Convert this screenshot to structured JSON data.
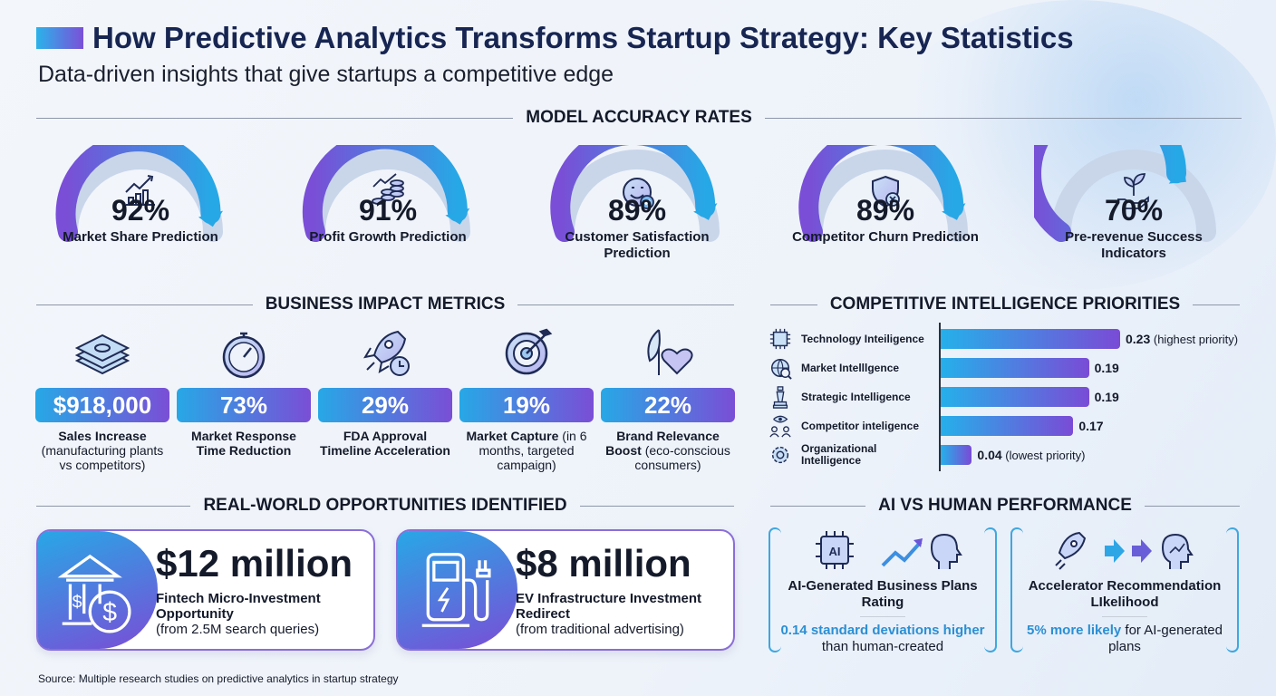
{
  "header": {
    "title": "How Predictive Analytics Transforms Startup Strategy: Key Statistics",
    "subtitle": "Data-driven insights that give startups a competitive edge"
  },
  "colors": {
    "gradient_start": "#27a8e6",
    "gradient_end": "#7a4ed6",
    "title": "#172552",
    "highlight": "#2a8fd4"
  },
  "accuracy": {
    "heading": "MODEL ACCURACY RATES",
    "items": [
      {
        "value": "92%",
        "pct": 92,
        "label": "Market Share Prediction",
        "icon": "chart-up-icon"
      },
      {
        "value": "91%",
        "pct": 91,
        "label": "Profit Growth Prediction",
        "icon": "coins-growth-icon"
      },
      {
        "value": "89%",
        "pct": 89,
        "label": "Customer Satisfaction Prediction",
        "icon": "smile-check-icon"
      },
      {
        "value": "89%",
        "pct": 89,
        "label": "Competitor Churn Prediction",
        "icon": "shield-x-icon"
      },
      {
        "value": "70%",
        "pct": 70,
        "label": "Pre-revenue Success Indicators",
        "icon": "plant-hand-icon"
      }
    ]
  },
  "impact": {
    "heading": "BUSINESS IMPACT METRICS",
    "items": [
      {
        "value": "$918,000",
        "bold": "Sales Increase",
        "note": "(manufacturing plants vs competitors)",
        "icon": "money-stack-icon"
      },
      {
        "value": "73%",
        "bold": "Market Response Time Reduction",
        "note": "",
        "icon": "stopwatch-icon"
      },
      {
        "value": "29%",
        "bold": "FDA Approval Timeline Acceleration",
        "note": "",
        "icon": "rocket-clock-icon"
      },
      {
        "value": "19%",
        "bold": "Market Capture",
        "note": "(in 6 months, targeted campaign)",
        "icon": "target-icon"
      },
      {
        "value": "22%",
        "bold": "Brand Relevance Boost",
        "note": "(eco-conscious consumers)",
        "icon": "leaf-heart-icon"
      }
    ]
  },
  "chart_data": {
    "type": "bar",
    "orientation": "horizontal",
    "title": "COMPETITIVE INTELLIGENCE PRIORITIES",
    "categories": [
      "Technology Inteiligence",
      "Market Intelllgence",
      "Strategic Intelligence",
      "Competitor inteligence",
      "Organizational Intelligence"
    ],
    "values": [
      0.23,
      0.19,
      0.19,
      0.17,
      0.04
    ],
    "value_labels": [
      "0.23",
      "0.19",
      "0.19",
      "0.17",
      "0.04"
    ],
    "annotations": [
      "(highest priority)",
      "",
      "",
      "",
      "(lowest priority)"
    ],
    "icons": [
      "chip-icon",
      "globe-search-icon",
      "chess-icon",
      "people-eye-icon",
      "gear-icon"
    ],
    "xlim": [
      0,
      0.25
    ],
    "grid": false
  },
  "opportunities": {
    "heading": "REAL-WORLD OPPORTUNITIES IDENTIFIED",
    "items": [
      {
        "amount": "$12 million",
        "title": "Fintech Micro-Investment Opportunity",
        "note": "(from 2.5M search queries)",
        "icon": "bank-dollar-icon"
      },
      {
        "amount": "$8 million",
        "title": "EV Infrastructure Investment Redirect",
        "note": "(from traditional advertising)",
        "icon": "ev-charger-icon"
      }
    ]
  },
  "ai_vs_human": {
    "heading": "AI VS HUMAN PERFORMANCE",
    "items": [
      {
        "title": "AI-Generated Business Plans Rating",
        "highlight": "0.14 standard deviations higher",
        "rest": " than human-created"
      },
      {
        "title": "Accelerator Recommendation LIkelihood",
        "highlight": "5% more likely",
        "rest": " for AI-generated plans"
      }
    ]
  },
  "footer": {
    "source": "Source: Multiple research studies on predictive analytics in startup strategy"
  }
}
